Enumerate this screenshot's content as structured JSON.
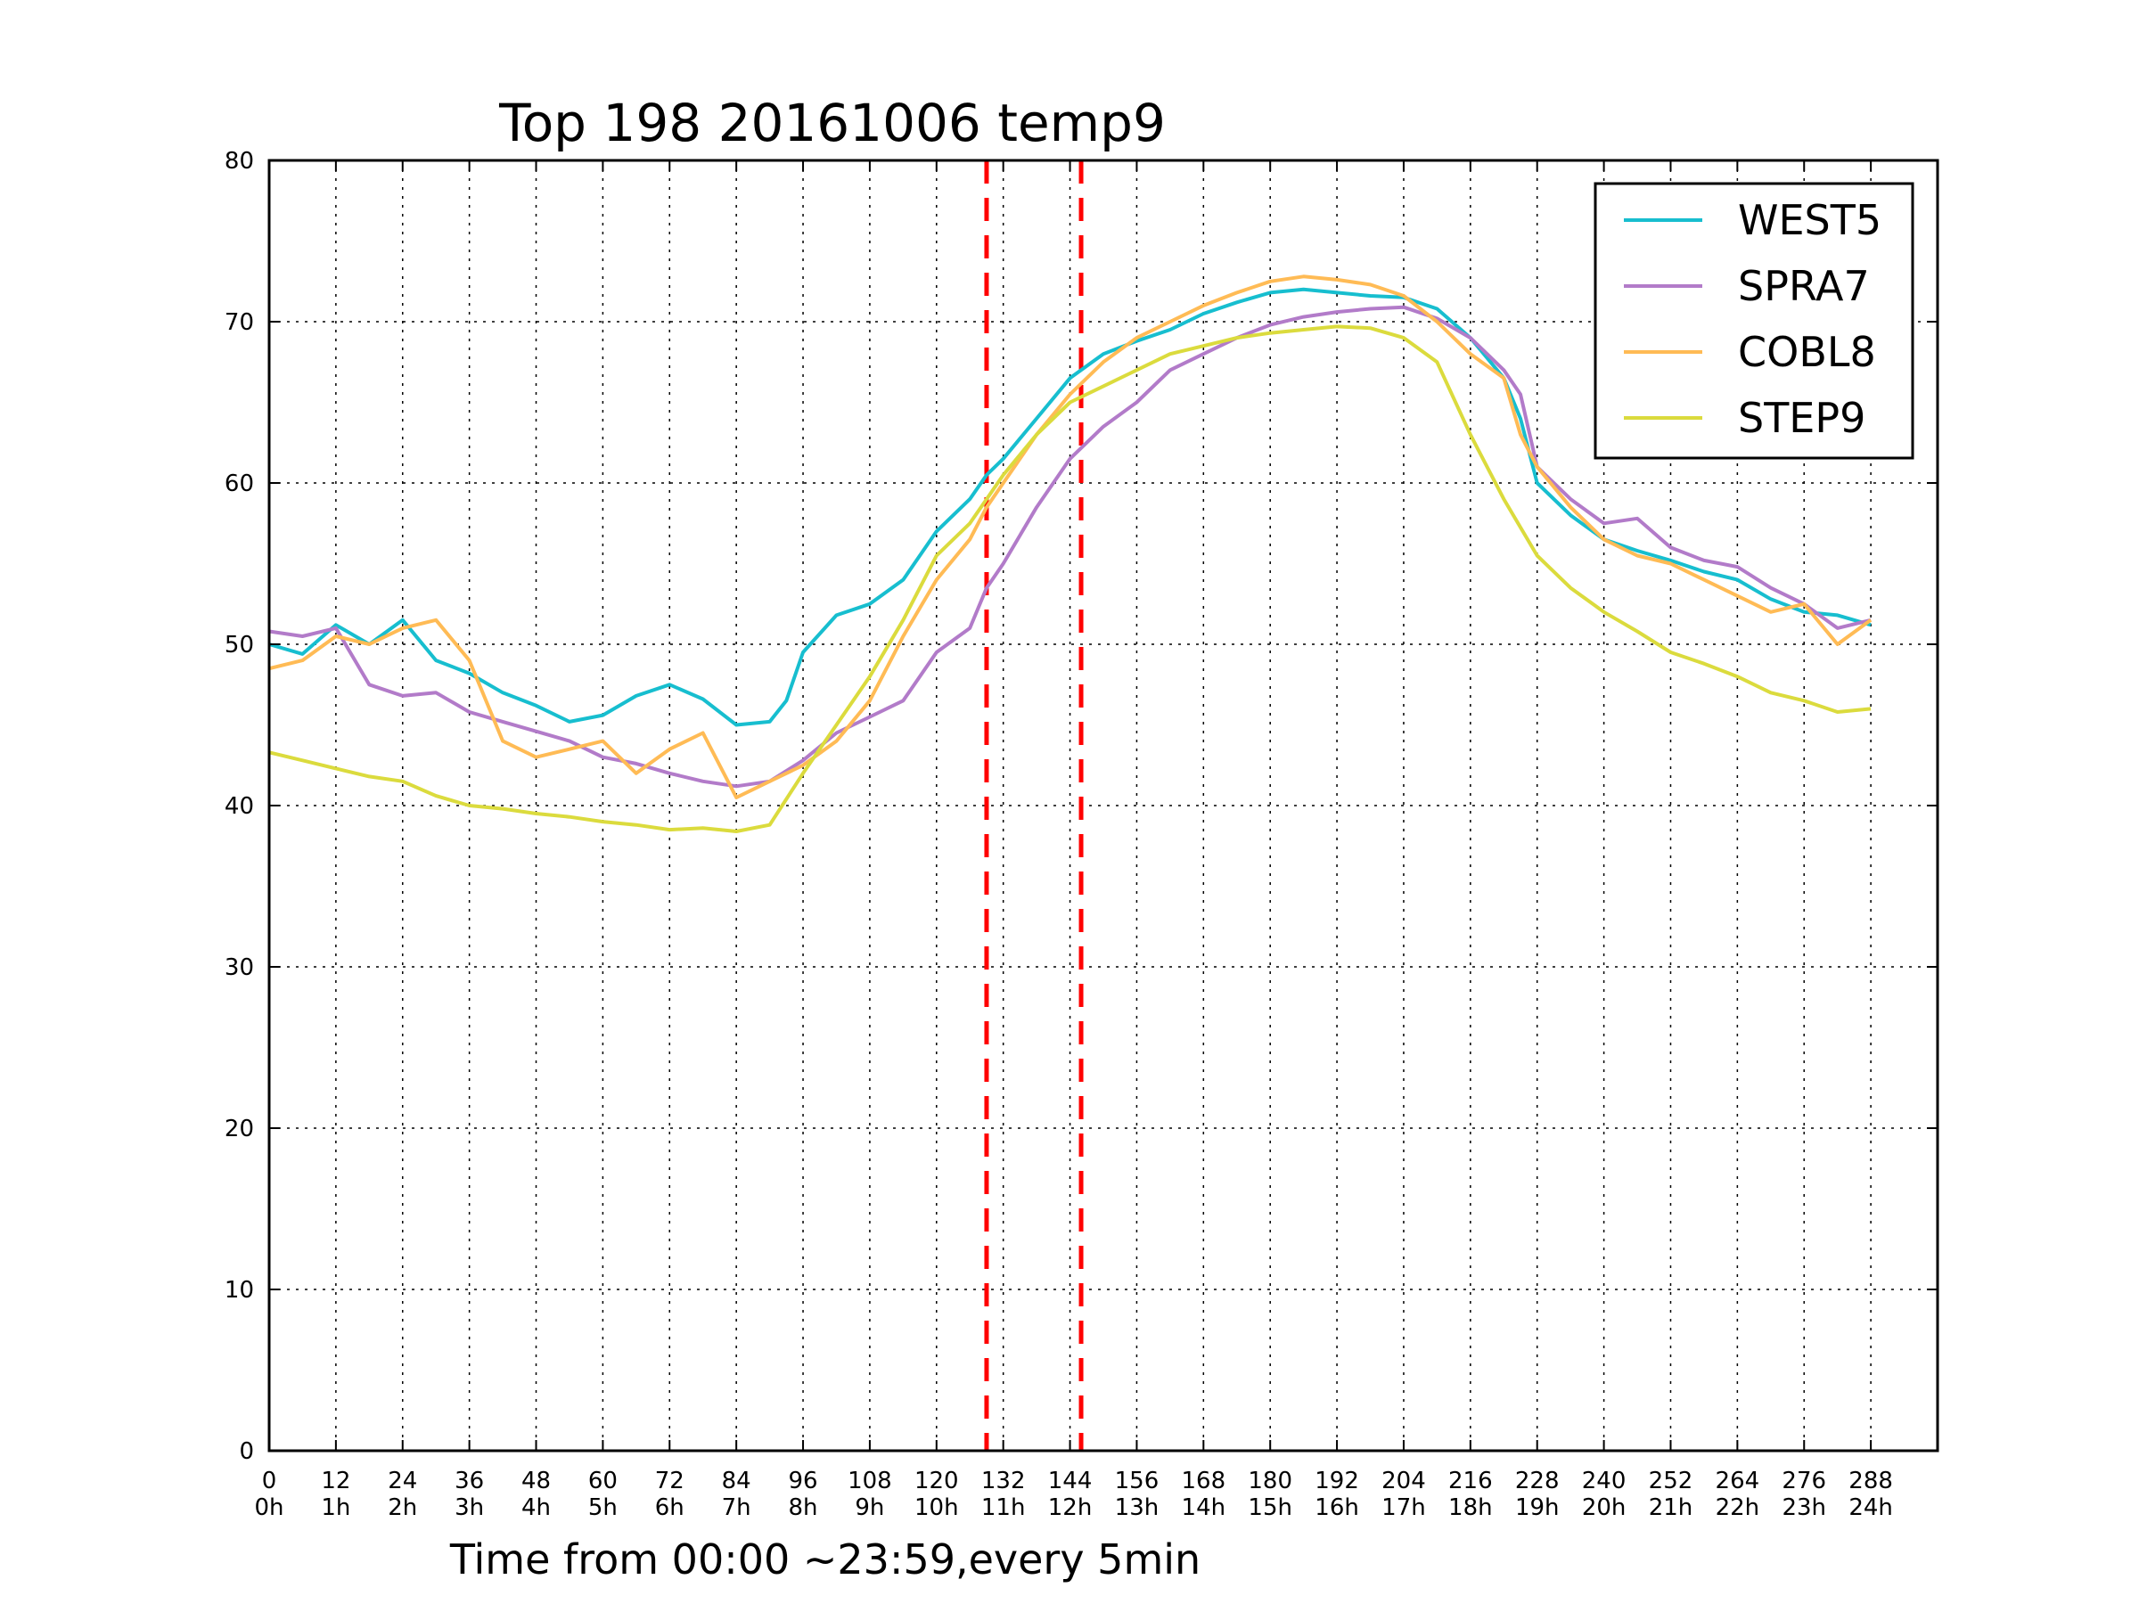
{
  "chart_data": {
    "type": "line",
    "title": "Top 198 20161006 temp9",
    "xlabel": "Time from 00:00 ~23:59,every 5min",
    "ylabel": "",
    "xlim": [
      0,
      300
    ],
    "ylim": [
      0,
      80
    ],
    "grid": true,
    "legend_position": "top-right",
    "xticks": [
      {
        "value": 0,
        "label": "0",
        "sublabel": "0h"
      },
      {
        "value": 12,
        "label": "12",
        "sublabel": "1h"
      },
      {
        "value": 24,
        "label": "24",
        "sublabel": "2h"
      },
      {
        "value": 36,
        "label": "36",
        "sublabel": "3h"
      },
      {
        "value": 48,
        "label": "48",
        "sublabel": "4h"
      },
      {
        "value": 60,
        "label": "60",
        "sublabel": "5h"
      },
      {
        "value": 72,
        "label": "72",
        "sublabel": "6h"
      },
      {
        "value": 84,
        "label": "84",
        "sublabel": "7h"
      },
      {
        "value": 96,
        "label": "96",
        "sublabel": "8h"
      },
      {
        "value": 108,
        "label": "108",
        "sublabel": "9h"
      },
      {
        "value": 120,
        "label": "120",
        "sublabel": "10h"
      },
      {
        "value": 132,
        "label": "132",
        "sublabel": "11h"
      },
      {
        "value": 144,
        "label": "144",
        "sublabel": "12h"
      },
      {
        "value": 156,
        "label": "156",
        "sublabel": "13h"
      },
      {
        "value": 168,
        "label": "168",
        "sublabel": "14h"
      },
      {
        "value": 180,
        "label": "180",
        "sublabel": "15h"
      },
      {
        "value": 192,
        "label": "192",
        "sublabel": "16h"
      },
      {
        "value": 204,
        "label": "204",
        "sublabel": "17h"
      },
      {
        "value": 216,
        "label": "216",
        "sublabel": "18h"
      },
      {
        "value": 228,
        "label": "228",
        "sublabel": "19h"
      },
      {
        "value": 240,
        "label": "240",
        "sublabel": "20h"
      },
      {
        "value": 252,
        "label": "252",
        "sublabel": "21h"
      },
      {
        "value": 264,
        "label": "264",
        "sublabel": "22h"
      },
      {
        "value": 276,
        "label": "276",
        "sublabel": "23h"
      },
      {
        "value": 288,
        "label": "288",
        "sublabel": "24h"
      }
    ],
    "yticks": [
      {
        "value": 0,
        "label": "0"
      },
      {
        "value": 10,
        "label": "10"
      },
      {
        "value": 20,
        "label": "20"
      },
      {
        "value": 30,
        "label": "30"
      },
      {
        "value": 40,
        "label": "40"
      },
      {
        "value": 50,
        "label": "50"
      },
      {
        "value": 60,
        "label": "60"
      },
      {
        "value": 70,
        "label": "70"
      },
      {
        "value": 80,
        "label": "80"
      }
    ],
    "vlines": [
      {
        "x": 129,
        "color": "#ff0000",
        "style": "dashed"
      },
      {
        "x": 146,
        "color": "#ff0000",
        "style": "dashed"
      }
    ],
    "series": [
      {
        "name": "WEST5",
        "color": "#17becf",
        "x": [
          0,
          6,
          12,
          18,
          24,
          30,
          36,
          42,
          48,
          54,
          60,
          66,
          72,
          78,
          84,
          90,
          93,
          96,
          102,
          108,
          114,
          120,
          126,
          129,
          132,
          138,
          144,
          150,
          156,
          162,
          168,
          174,
          180,
          186,
          192,
          198,
          204,
          210,
          216,
          222,
          225,
          228,
          234,
          240,
          246,
          252,
          258,
          264,
          270,
          276,
          282,
          288
        ],
        "y": [
          50.0,
          49.4,
          51.2,
          50.0,
          51.5,
          49.0,
          48.2,
          47.0,
          46.2,
          45.2,
          45.6,
          46.8,
          47.5,
          46.6,
          45.0,
          45.2,
          46.5,
          49.5,
          51.8,
          52.5,
          54.0,
          57.0,
          59.0,
          60.5,
          61.5,
          64.0,
          66.5,
          68.0,
          68.8,
          69.5,
          70.5,
          71.2,
          71.8,
          72.0,
          71.8,
          71.6,
          71.5,
          70.8,
          69.0,
          66.5,
          64.0,
          60.0,
          58.0,
          56.5,
          55.8,
          55.2,
          54.5,
          54.0,
          52.8,
          52.0,
          51.8,
          51.2
        ]
      },
      {
        "name": "SPRA7",
        "color": "#b27bc9",
        "x": [
          0,
          6,
          12,
          18,
          24,
          30,
          36,
          42,
          48,
          54,
          60,
          66,
          72,
          78,
          84,
          90,
          96,
          102,
          108,
          114,
          120,
          126,
          129,
          132,
          138,
          144,
          150,
          156,
          162,
          168,
          174,
          180,
          186,
          192,
          198,
          204,
          210,
          216,
          222,
          225,
          228,
          234,
          240,
          246,
          252,
          258,
          264,
          270,
          276,
          282,
          288
        ],
        "y": [
          50.8,
          50.5,
          51.0,
          47.5,
          46.8,
          47.0,
          45.8,
          45.2,
          44.6,
          44.0,
          43.0,
          42.6,
          42.0,
          41.5,
          41.2,
          41.5,
          42.8,
          44.5,
          45.5,
          46.5,
          49.5,
          51.0,
          53.5,
          55.0,
          58.5,
          61.5,
          63.5,
          65.0,
          67.0,
          68.0,
          69.0,
          69.8,
          70.3,
          70.6,
          70.8,
          70.9,
          70.2,
          69.0,
          67.0,
          65.5,
          61.0,
          59.0,
          57.5,
          57.8,
          56.0,
          55.2,
          54.8,
          53.5,
          52.5,
          51.0,
          51.5
        ]
      },
      {
        "name": "COBL8",
        "color": "#ffbb55",
        "x": [
          0,
          6,
          12,
          18,
          24,
          30,
          36,
          42,
          48,
          54,
          60,
          66,
          72,
          78,
          84,
          90,
          96,
          102,
          108,
          114,
          120,
          126,
          129,
          132,
          138,
          144,
          150,
          156,
          162,
          168,
          174,
          180,
          186,
          192,
          198,
          204,
          210,
          216,
          222,
          225,
          228,
          234,
          240,
          246,
          252,
          258,
          264,
          270,
          276,
          282,
          288
        ],
        "y": [
          48.5,
          49.0,
          50.5,
          50.0,
          51.0,
          51.5,
          49.0,
          44.0,
          43.0,
          43.5,
          44.0,
          42.0,
          43.5,
          44.5,
          40.5,
          41.5,
          42.5,
          44.0,
          46.5,
          50.5,
          54.0,
          56.5,
          58.5,
          60.0,
          63.0,
          65.5,
          67.5,
          69.0,
          70.0,
          71.0,
          71.8,
          72.5,
          72.8,
          72.6,
          72.3,
          71.6,
          70.0,
          68.0,
          66.5,
          63.0,
          61.0,
          58.5,
          56.5,
          55.5,
          55.0,
          54.0,
          53.0,
          52.0,
          52.5,
          50.0,
          51.5
        ]
      },
      {
        "name": "STEP9",
        "color": "#dbdb3d",
        "x": [
          0,
          6,
          12,
          18,
          24,
          30,
          36,
          42,
          48,
          54,
          60,
          66,
          72,
          78,
          84,
          90,
          96,
          102,
          108,
          114,
          120,
          126,
          129,
          132,
          138,
          144,
          150,
          156,
          162,
          168,
          174,
          180,
          186,
          192,
          198,
          204,
          210,
          216,
          222,
          228,
          234,
          240,
          246,
          252,
          258,
          264,
          270,
          276,
          282,
          288
        ],
        "y": [
          43.3,
          42.8,
          42.3,
          41.8,
          41.5,
          40.6,
          40.0,
          39.8,
          39.5,
          39.3,
          39.0,
          38.8,
          38.5,
          38.6,
          38.4,
          38.8,
          42.0,
          45.0,
          48.0,
          51.5,
          55.5,
          57.5,
          59.0,
          60.5,
          63.0,
          65.0,
          66.0,
          67.0,
          68.0,
          68.5,
          69.0,
          69.3,
          69.5,
          69.7,
          69.6,
          69.0,
          67.5,
          63.0,
          59.0,
          55.5,
          53.5,
          52.0,
          50.8,
          49.5,
          48.8,
          48.0,
          47.0,
          46.5,
          45.8,
          46.0
        ]
      }
    ]
  }
}
